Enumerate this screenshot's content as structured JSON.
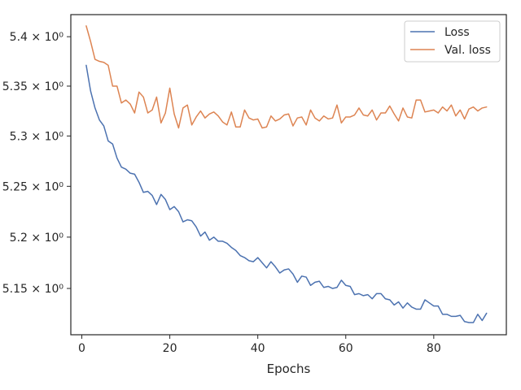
{
  "chart_data": {
    "type": "line",
    "xlabel": "Epochs",
    "ylabel": "",
    "xlim": [
      -2.5,
      96.5
    ],
    "ylim": [
      5.1053,
      5.4225
    ],
    "yscale": "log",
    "x_ticks": [
      0,
      20,
      40,
      60,
      80
    ],
    "y_ticks": [
      {
        "value": 5.15,
        "label": "5.15 × 10⁰"
      },
      {
        "value": 5.2,
        "label": "5.2 × 10⁰"
      },
      {
        "value": 5.25,
        "label": "5.25 × 10⁰"
      },
      {
        "value": 5.3,
        "label": "5.3 × 10⁰"
      },
      {
        "value": 5.35,
        "label": "5.35 × 10⁰"
      },
      {
        "value": 5.4,
        "label": "5.4 × 10⁰"
      }
    ],
    "grid": false,
    "legend_position": "top-right",
    "series": [
      {
        "name": "Loss",
        "color": "#4c72b0",
        "x": [
          1,
          2,
          3,
          4,
          5,
          6,
          7,
          8,
          9,
          10,
          11,
          12,
          13,
          14,
          15,
          16,
          17,
          18,
          19,
          20,
          21,
          22,
          23,
          24,
          25,
          26,
          27,
          28,
          29,
          30,
          31,
          32,
          33,
          34,
          35,
          36,
          37,
          38,
          39,
          40,
          41,
          42,
          43,
          44,
          45,
          46,
          47,
          48,
          49,
          50,
          51,
          52,
          53,
          54,
          55,
          56,
          57,
          58,
          59,
          60,
          61,
          62,
          63,
          64,
          65,
          66,
          67,
          68,
          69,
          70,
          71,
          72,
          73,
          74,
          75,
          76,
          77,
          78,
          79,
          80,
          81,
          82,
          83,
          84,
          85,
          86,
          87,
          88,
          89,
          90,
          91,
          92
        ],
        "values": [
          5.371,
          5.345,
          5.328,
          5.316,
          5.31,
          5.295,
          5.292,
          5.278,
          5.269,
          5.267,
          5.263,
          5.262,
          5.254,
          5.244,
          5.245,
          5.241,
          5.232,
          5.242,
          5.237,
          5.227,
          5.23,
          5.225,
          5.215,
          5.217,
          5.216,
          5.21,
          5.201,
          5.205,
          5.197,
          5.2,
          5.196,
          5.196,
          5.194,
          5.19,
          5.187,
          5.182,
          5.18,
          5.177,
          5.176,
          5.18,
          5.175,
          5.17,
          5.176,
          5.171,
          5.165,
          5.168,
          5.169,
          5.164,
          5.156,
          5.162,
          5.161,
          5.153,
          5.156,
          5.157,
          5.151,
          5.152,
          5.15,
          5.151,
          5.158,
          5.153,
          5.152,
          5.144,
          5.145,
          5.143,
          5.144,
          5.14,
          5.145,
          5.145,
          5.14,
          5.139,
          5.134,
          5.137,
          5.131,
          5.136,
          5.132,
          5.13,
          5.13,
          5.139,
          5.136,
          5.133,
          5.133,
          5.125,
          5.125,
          5.123,
          5.123,
          5.124,
          5.118,
          5.117,
          5.117,
          5.125,
          5.119,
          5.126
        ]
      },
      {
        "name": "Val. loss",
        "color": "#dd8452",
        "x": [
          1,
          2,
          3,
          4,
          5,
          6,
          7,
          8,
          9,
          10,
          11,
          12,
          13,
          14,
          15,
          16,
          17,
          18,
          19,
          20,
          21,
          22,
          23,
          24,
          25,
          26,
          27,
          28,
          29,
          30,
          31,
          32,
          33,
          34,
          35,
          36,
          37,
          38,
          39,
          40,
          41,
          42,
          43,
          44,
          45,
          46,
          47,
          48,
          49,
          50,
          51,
          52,
          53,
          54,
          55,
          56,
          57,
          58,
          59,
          60,
          61,
          62,
          63,
          64,
          65,
          66,
          67,
          68,
          69,
          70,
          71,
          72,
          73,
          74,
          75,
          76,
          77,
          78,
          79,
          80,
          81,
          82,
          83,
          84,
          85,
          86,
          87,
          88,
          89,
          90,
          91,
          92
        ],
        "values": [
          5.411,
          5.395,
          5.377,
          5.375,
          5.374,
          5.371,
          5.35,
          5.35,
          5.333,
          5.336,
          5.332,
          5.323,
          5.344,
          5.339,
          5.323,
          5.326,
          5.339,
          5.313,
          5.323,
          5.348,
          5.322,
          5.308,
          5.328,
          5.331,
          5.311,
          5.319,
          5.325,
          5.318,
          5.322,
          5.324,
          5.32,
          5.314,
          5.311,
          5.324,
          5.309,
          5.309,
          5.326,
          5.318,
          5.316,
          5.317,
          5.308,
          5.309,
          5.32,
          5.315,
          5.317,
          5.321,
          5.322,
          5.31,
          5.318,
          5.319,
          5.311,
          5.326,
          5.318,
          5.315,
          5.32,
          5.317,
          5.318,
          5.331,
          5.313,
          5.319,
          5.319,
          5.321,
          5.328,
          5.321,
          5.32,
          5.326,
          5.316,
          5.323,
          5.323,
          5.33,
          5.322,
          5.315,
          5.328,
          5.319,
          5.318,
          5.336,
          5.336,
          5.324,
          5.325,
          5.326,
          5.323,
          5.329,
          5.325,
          5.331,
          5.32,
          5.326,
          5.317,
          5.327,
          5.329,
          5.325,
          5.328,
          5.329
        ]
      }
    ]
  }
}
